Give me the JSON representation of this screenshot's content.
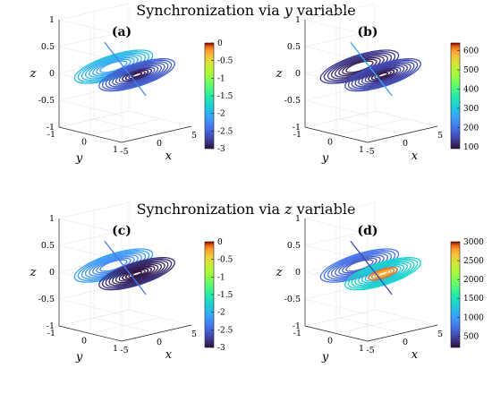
{
  "figure": {
    "section_titles": [
      {
        "prefix": "Synchronization via ",
        "var": "y",
        "suffix": " variable"
      },
      {
        "prefix": "Synchronization via ",
        "var": "z",
        "suffix": " variable"
      }
    ]
  },
  "chart_data": [
    {
      "type": "line",
      "label": "(a)",
      "xlabel": "x",
      "ylabel": "y",
      "zlabel": "z",
      "xticks": [
        "-5",
        "0",
        "5"
      ],
      "yticks": [
        "-1",
        "0",
        "1"
      ],
      "zticks": [
        "-1",
        "-0.5",
        "0",
        "0.5",
        "1"
      ],
      "xlim": [
        -5,
        5
      ],
      "ylim": [
        -1,
        1
      ],
      "zlim": [
        -1,
        1
      ],
      "colorbar": {
        "colormap": "turbo",
        "range": [
          -3,
          0
        ],
        "ticks": [
          "0",
          "-0.5",
          "-1",
          "-1.5",
          "-2",
          "-2.5",
          "-3"
        ]
      },
      "color_values": {
        "left_lobe": -2.0,
        "right_lobe": -2.6,
        "right_core": -2.9,
        "wing": -2.3
      },
      "grid": true
    },
    {
      "type": "line",
      "label": "(b)",
      "xlabel": "x",
      "ylabel": "y",
      "zlabel": "z",
      "xticks": [
        "-5",
        "0",
        "5"
      ],
      "yticks": [
        "-1",
        "0",
        "1"
      ],
      "zticks": [
        "-1",
        "-0.5",
        "0",
        "0.5",
        "1"
      ],
      "xlim": [
        -5,
        5
      ],
      "ylim": [
        -1,
        1
      ],
      "zlim": [
        -1,
        1
      ],
      "colorbar": {
        "colormap": "turbo",
        "range": [
          90,
          640
        ],
        "ticks": [
          "600",
          "500",
          "400",
          "300",
          "200",
          "100"
        ]
      },
      "color_values": {
        "left_lobe": 120,
        "right_lobe": 140,
        "right_core": 105,
        "wing": 260
      },
      "grid": true
    },
    {
      "type": "line",
      "label": "(c)",
      "xlabel": "x",
      "ylabel": "y",
      "zlabel": "z",
      "xticks": [
        "-5",
        "0",
        "5"
      ],
      "yticks": [
        "-1",
        "0",
        "1"
      ],
      "zticks": [
        "-1",
        "-0.5",
        "0",
        "0.5",
        "1"
      ],
      "xlim": [
        -5,
        5
      ],
      "ylim": [
        -1,
        1
      ],
      "zlim": [
        -1,
        1
      ],
      "colorbar": {
        "colormap": "turbo",
        "range": [
          -3,
          0
        ],
        "ticks": [
          "0",
          "-0.5",
          "-1",
          "-1.5",
          "-2",
          "-2.5",
          "-3"
        ]
      },
      "color_values": {
        "left_lobe": -2.2,
        "right_lobe": -2.9,
        "right_core": -3.0,
        "wing": -2.4
      },
      "grid": true
    },
    {
      "type": "line",
      "label": "(d)",
      "xlabel": "x",
      "ylabel": "y",
      "zlabel": "z",
      "xticks": [
        "-5",
        "0",
        "5"
      ],
      "yticks": [
        "-1",
        "0",
        "1"
      ],
      "zticks": [
        "-1",
        "-0.5",
        "0",
        "0.5",
        "1"
      ],
      "xlim": [
        -5,
        5
      ],
      "ylim": [
        -1,
        1
      ],
      "zlim": [
        -1,
        1
      ],
      "colorbar": {
        "colormap": "turbo",
        "range": [
          200,
          3000
        ],
        "ticks": [
          "3000",
          "2500",
          "2000",
          "1500",
          "1000",
          "500"
        ]
      },
      "color_values": {
        "left_lobe": 700,
        "right_lobe": 1300,
        "right_core": 2800,
        "wing": 500
      },
      "grid": true
    }
  ]
}
